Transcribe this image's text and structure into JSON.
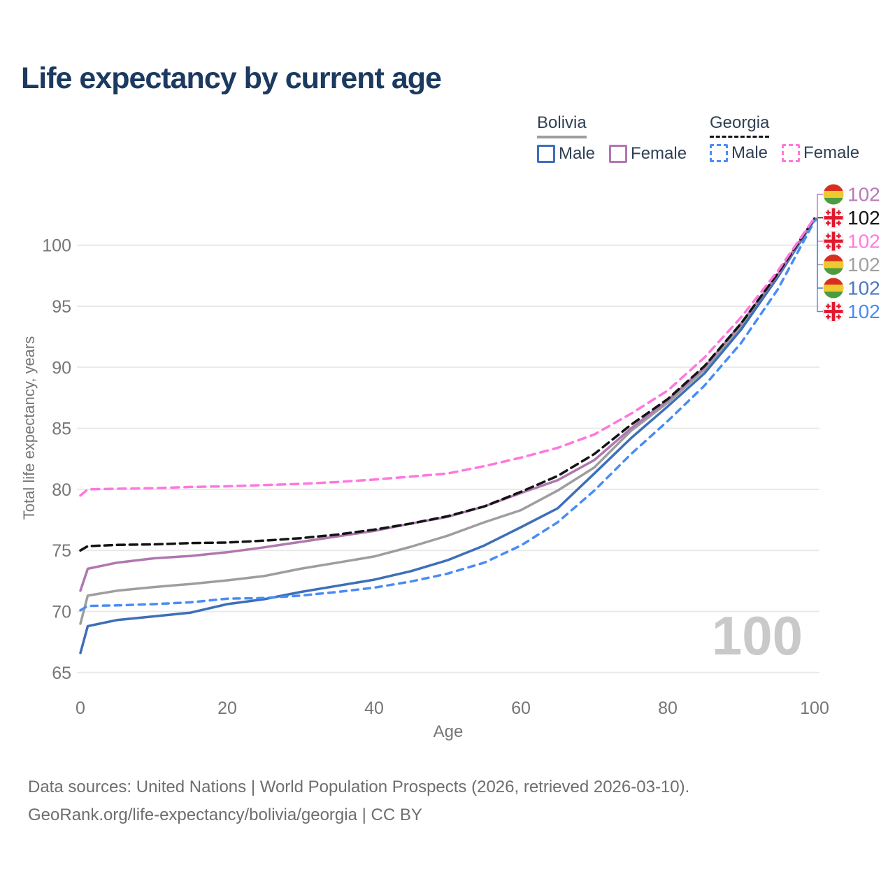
{
  "title": "Life expectancy by current age",
  "legend": {
    "groups": [
      {
        "name": "Bolivia",
        "line_style": "solid",
        "underline_color": "#9e9e9e",
        "items": [
          {
            "label": "Male",
            "color": "#3d6fb8",
            "dashed": false
          },
          {
            "label": "Female",
            "color": "#b077b0",
            "dashed": false
          }
        ]
      },
      {
        "name": "Georgia",
        "line_style": "dashed",
        "underline_color": "#141414",
        "items": [
          {
            "label": "Male",
            "color": "#4a8cf5",
            "dashed": true
          },
          {
            "label": "Female",
            "color": "#ff77dd",
            "dashed": true
          }
        ]
      }
    ]
  },
  "chart_data": {
    "type": "line",
    "xlabel": "Age",
    "ylabel": "Total life expectancy, years",
    "xticks": [
      0,
      20,
      40,
      60,
      80,
      100
    ],
    "yticks": [
      65,
      70,
      75,
      80,
      85,
      90,
      95,
      100
    ],
    "xlim": [
      0,
      100
    ],
    "ylim": [
      65,
      100
    ],
    "grid": "horizontal",
    "x": [
      0,
      1,
      5,
      10,
      15,
      20,
      25,
      30,
      35,
      40,
      45,
      50,
      55,
      60,
      65,
      70,
      75,
      80,
      85,
      90,
      95,
      100
    ],
    "series": [
      {
        "name": "Bolivia (both sexes)",
        "key": "bolivia-total",
        "color": "#9e9e9e",
        "dash": null,
        "values": [
          69.0,
          71.3,
          71.7,
          72.0,
          72.25,
          72.55,
          72.9,
          73.5,
          74.0,
          74.5,
          75.3,
          76.2,
          77.3,
          78.3,
          79.9,
          81.8,
          84.8,
          87.1,
          89.8,
          93.4,
          97.5,
          102.15
        ]
      },
      {
        "name": "Bolivia Male",
        "key": "bolivia-male",
        "color": "#3d6fb8",
        "dash": null,
        "values": [
          66.6,
          68.8,
          69.3,
          69.6,
          69.9,
          70.6,
          71.0,
          71.6,
          72.1,
          72.6,
          73.3,
          74.2,
          75.4,
          76.9,
          78.45,
          81.3,
          84.2,
          86.8,
          89.5,
          93.1,
          97.4,
          102.1
        ]
      },
      {
        "name": "Bolivia Female",
        "key": "bolivia-female",
        "color": "#b077b0",
        "dash": null,
        "values": [
          71.7,
          73.5,
          74.0,
          74.35,
          74.55,
          74.85,
          75.25,
          75.7,
          76.15,
          76.6,
          77.2,
          77.75,
          78.6,
          79.7,
          80.75,
          82.4,
          85.0,
          87.3,
          90.0,
          93.6,
          97.6,
          102.2
        ]
      },
      {
        "name": "Georgia Male",
        "key": "georgia-male",
        "color": "#4a8cf5",
        "dash": "9 8",
        "values": [
          70.1,
          70.45,
          70.5,
          70.6,
          70.75,
          71.05,
          71.1,
          71.3,
          71.6,
          71.95,
          72.45,
          73.1,
          74.0,
          75.4,
          77.3,
          79.9,
          82.9,
          85.6,
          88.5,
          92.0,
          96.4,
          102.0
        ]
      },
      {
        "name": "Georgia (both sexes)",
        "key": "georgia-total",
        "color": "#141414",
        "dash": "11 7",
        "values": [
          75.0,
          75.35,
          75.45,
          75.5,
          75.6,
          75.65,
          75.8,
          76.0,
          76.3,
          76.7,
          77.2,
          77.8,
          78.6,
          79.8,
          81.1,
          82.9,
          85.3,
          87.4,
          90.1,
          93.6,
          97.7,
          102.2
        ]
      },
      {
        "name": "Georgia Female",
        "key": "georgia-female",
        "color": "#ff77dd",
        "dash": "11 8",
        "values": [
          79.5,
          80.0,
          80.05,
          80.1,
          80.2,
          80.25,
          80.35,
          80.45,
          80.6,
          80.8,
          81.05,
          81.3,
          81.9,
          82.6,
          83.4,
          84.5,
          86.2,
          88.1,
          90.8,
          94.1,
          97.9,
          102.25
        ]
      }
    ],
    "end_labels": [
      {
        "value": "102",
        "flag": "bolivia-flag",
        "color": "#b77ab7",
        "series": "bolivia-female"
      },
      {
        "value": "102",
        "flag": "georgia-flag",
        "color": "#141414",
        "series": "georgia-total"
      },
      {
        "value": "102",
        "flag": "georgia-flag",
        "color": "#ff7ae1",
        "series": "georgia-female"
      },
      {
        "value": "102",
        "flag": "bolivia-flag",
        "color": "#a0a0a0",
        "series": "bolivia-total"
      },
      {
        "value": "102",
        "flag": "bolivia-flag",
        "color": "#4b78bf",
        "series": "bolivia-male"
      },
      {
        "value": "102",
        "flag": "georgia-flag",
        "color": "#4b8bf4",
        "series": "georgia-male"
      }
    ],
    "age_indicator": "100",
    "colors": {
      "grid": "#e9e9e9",
      "axis_text": "#767676",
      "watermark": "#c9c9c9",
      "bolivia_flag": {
        "red": "#d8301f",
        "yellow": "#eec92f",
        "green": "#4d9b41"
      },
      "georgia_flag": {
        "white": "#fdfdfd",
        "red": "#e0182d"
      }
    }
  },
  "footer": {
    "line1": "Data sources: United Nations | World Population Prospects (2026, retrieved 2026-03-10).",
    "line2": "GeoRank.org/life-expectancy/bolivia/georgia | CC BY"
  }
}
